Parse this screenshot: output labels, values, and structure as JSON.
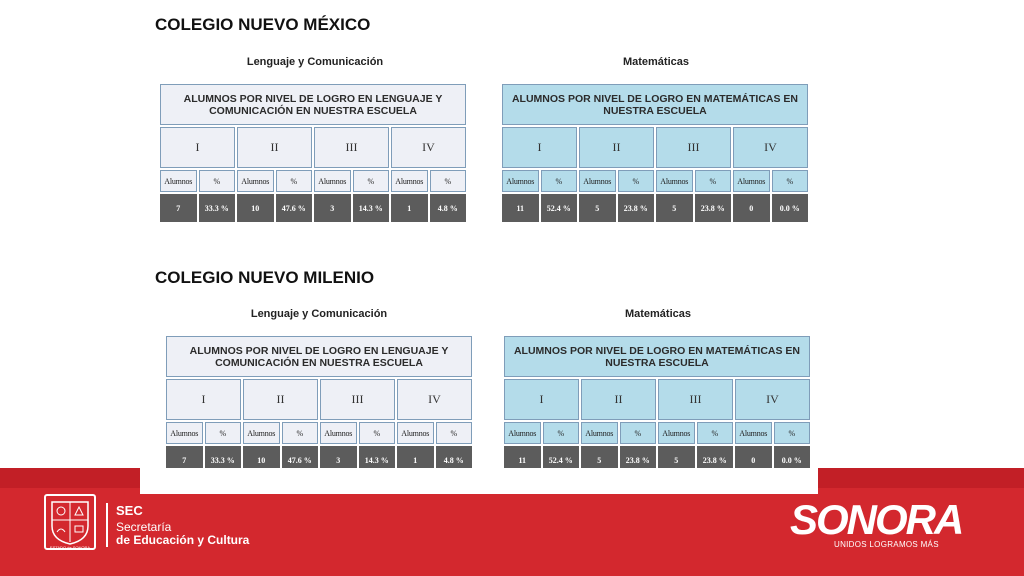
{
  "schools": [
    {
      "name": "COLEGIO NUEVO MÉXICO",
      "lang": {
        "label": "Lenguaje y Comunicación",
        "header": "ALUMNOS POR NIVEL DE LOGRO EN LENGUAJE Y COMUNICACIÓN EN NUESTRA ESCUELA",
        "levels": [
          "I",
          "II",
          "III",
          "IV"
        ],
        "sub": [
          "Alumnos",
          "%",
          "Alumnos",
          "%",
          "Alumnos",
          "%",
          "Alumnos",
          "%"
        ],
        "values": [
          "7",
          "33.3 %",
          "10",
          "47.6 %",
          "3",
          "14.3 %",
          "1",
          "4.8 %"
        ]
      },
      "math": {
        "label": "Matemáticas",
        "header": "ALUMNOS POR NIVEL DE LOGRO EN MATEMÁTICAS EN NUESTRA ESCUELA",
        "levels": [
          "I",
          "II",
          "III",
          "IV"
        ],
        "sub": [
          "Alumnos",
          "%",
          "Alumnos",
          "%",
          "Alumnos",
          "%",
          "Alumnos",
          "%"
        ],
        "values": [
          "11",
          "52.4 %",
          "5",
          "23.8 %",
          "5",
          "23.8 %",
          "0",
          "0.0 %"
        ]
      }
    },
    {
      "name": "COLEGIO NUEVO MILENIO",
      "lang": {
        "label": "Lenguaje y Comunicación",
        "header": "ALUMNOS POR NIVEL DE LOGRO EN LENGUAJE Y COMUNICACIÓN EN NUESTRA ESCUELA",
        "levels": [
          "I",
          "II",
          "III",
          "IV"
        ],
        "sub": [
          "Alumnos",
          "%",
          "Alumnos",
          "%",
          "Alumnos",
          "%",
          "Alumnos",
          "%"
        ],
        "values": [
          "7",
          "33.3 %",
          "10",
          "47.6 %",
          "3",
          "14.3 %",
          "1",
          "4.8 %"
        ]
      },
      "math": {
        "label": "Matemáticas",
        "header": "ALUMNOS POR NIVEL DE LOGRO EN MATEMÁTICAS EN NUESTRA ESCUELA",
        "levels": [
          "I",
          "II",
          "III",
          "IV"
        ],
        "sub": [
          "Alumnos",
          "%",
          "Alumnos",
          "%",
          "Alumnos",
          "%",
          "Alumnos",
          "%"
        ],
        "values": [
          "11",
          "52.4 %",
          "5",
          "23.8 %",
          "5",
          "23.8 %",
          "0",
          "0.0 %"
        ]
      }
    }
  ],
  "footer": {
    "seal_text": "ESTADO de SONORA",
    "sec_title": "SEC",
    "sec_line1": "Secretaría",
    "sec_line2": "de Educación y Cultura",
    "brand": "SONORA",
    "brand_slogan": "UNIDOS LOGRAMOS MÁS"
  },
  "colors": {
    "footer_red": "#d3282e",
    "lang_table_bg": "#eef0f6",
    "math_table_bg": "#b4dcea",
    "value_row_bg": "#5c5c5c"
  }
}
